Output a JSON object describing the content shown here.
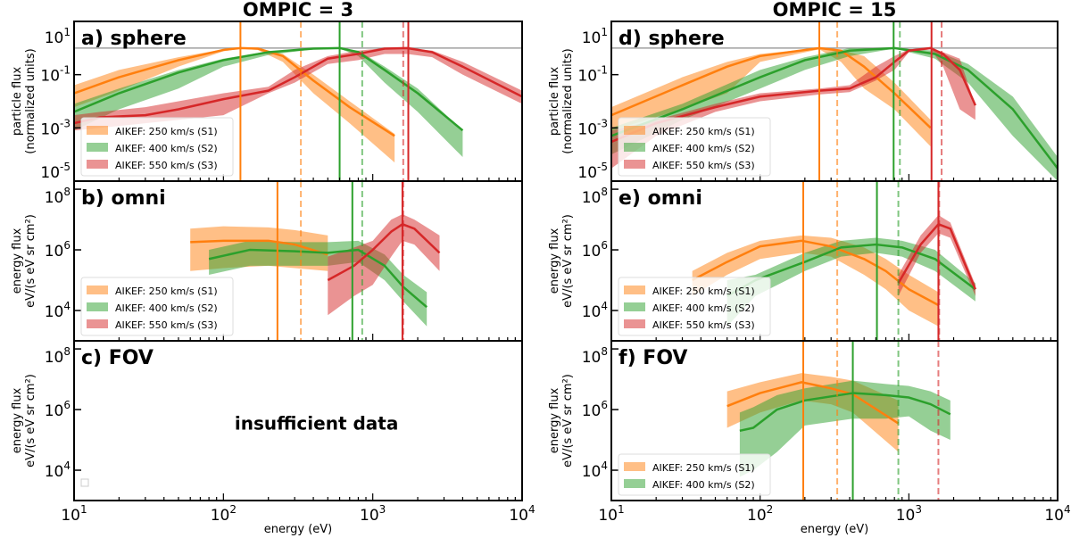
{
  "colors": {
    "S1": "#ff7f0e",
    "S2": "#2ca02c",
    "S3": "#d62728",
    "reference": "#a0a0a0"
  },
  "chart_data": [
    {
      "type": "line",
      "column_title": "OMPIC = 3",
      "panel_label": "a) sphere",
      "ylabel": [
        "particle flux",
        "(normalized units)"
      ],
      "xlabel": "",
      "xscale": "log",
      "yscale": "log",
      "xlim": [
        10,
        10000
      ],
      "ylim": [
        1e-05,
        10
      ],
      "yticks": [
        -5,
        -3,
        -1,
        1
      ],
      "xticks": [],
      "reference_line_y": 1,
      "legend": "lower-left",
      "series": [
        {
          "name": "AIKEF: 250 km/s (S1)",
          "key": "S1",
          "x": [
            10,
            20,
            50,
            100,
            130,
            170,
            250,
            400,
            700,
            1400
          ],
          "y": [
            0.02,
            0.08,
            0.35,
            0.85,
            1.0,
            0.95,
            0.5,
            0.06,
            0.006,
            0.0005
          ],
          "lo": [
            0.006,
            0.025,
            0.2,
            0.75,
            0.95,
            0.85,
            0.3,
            0.02,
            0.0015,
            5e-05
          ],
          "hi": [
            0.04,
            0.15,
            0.45,
            0.9,
            1.0,
            1.0,
            0.6,
            0.1,
            0.01,
            0.0006
          ]
        },
        {
          "name": "AIKEF: 400 km/s (S2)",
          "key": "S2",
          "x": [
            10,
            20,
            50,
            100,
            200,
            400,
            600,
            800,
            1200,
            2000,
            4000
          ],
          "y": [
            0.004,
            0.02,
            0.12,
            0.35,
            0.7,
            0.95,
            1.0,
            0.7,
            0.15,
            0.02,
            0.0008
          ],
          "lo": [
            0.0008,
            0.005,
            0.03,
            0.2,
            0.55,
            0.9,
            0.95,
            0.5,
            0.05,
            0.004,
            8e-05
          ],
          "hi": [
            0.008,
            0.03,
            0.15,
            0.4,
            0.75,
            1.0,
            1.0,
            0.8,
            0.2,
            0.03,
            0.0008
          ]
        },
        {
          "name": "AIKEF: 550 km/s (S3)",
          "key": "S3",
          "x": [
            10,
            15,
            30,
            50,
            100,
            200,
            300,
            500,
            800,
            1200,
            1700,
            2500,
            4000,
            10000
          ],
          "y": [
            0.0015,
            0.0025,
            0.003,
            0.005,
            0.012,
            0.025,
            0.08,
            0.4,
            0.6,
            0.95,
            1.0,
            0.7,
            0.2,
            0.015
          ],
          "lo": [
            0.0008,
            0.001,
            0.0015,
            0.002,
            0.003,
            0.02,
            0.05,
            0.25,
            0.35,
            0.6,
            0.6,
            0.45,
            0.1,
            0.008
          ],
          "hi": [
            0.003,
            0.004,
            0.006,
            0.01,
            0.02,
            0.035,
            0.15,
            0.5,
            0.8,
            1.0,
            1.0,
            0.8,
            0.3,
            0.025
          ]
        }
      ],
      "vlines": [
        {
          "key": "S1",
          "x": 130,
          "style": "solid"
        },
        {
          "key": "S1",
          "x": 330,
          "style": "dashed"
        },
        {
          "key": "S2",
          "x": 600,
          "style": "solid"
        },
        {
          "key": "S2",
          "x": 850,
          "style": "dashed"
        },
        {
          "key": "S3",
          "x": 1600,
          "style": "dashed"
        },
        {
          "key": "S3",
          "x": 1730,
          "style": "solid"
        }
      ]
    },
    {
      "type": "line",
      "panel_label": "b) omni",
      "ylabel": [
        "energy flux",
        "eV/(s eV sr cm²)"
      ],
      "xscale": "log",
      "yscale": "log",
      "xlim": [
        10,
        10000
      ],
      "ylim": [
        1000,
        185000000.0
      ],
      "yticks": [
        4,
        6,
        8
      ],
      "xticks": [],
      "legend": "lower-left",
      "series": [
        {
          "name": "AIKEF: 250 km/s (S1)",
          "key": "S1",
          "x": [
            60,
            100,
            200,
            300,
            500
          ],
          "y": [
            1800000.0,
            2000000.0,
            2000000.0,
            1500000.0,
            700000.0
          ],
          "lo": [
            200000.0,
            250000.0,
            300000.0,
            250000.0,
            200000.0
          ],
          "hi": [
            5000000.0,
            6000000.0,
            5500000.0,
            4500000.0,
            3000000.0
          ]
        },
        {
          "name": "AIKEF: 400 km/s (S2)",
          "key": "S2",
          "x": [
            80,
            150,
            300,
            500,
            800,
            1200,
            1600,
            2300
          ],
          "y": [
            500000.0,
            1000000.0,
            900000.0,
            800000.0,
            1000000.0,
            300000.0,
            60000.0,
            13000.0
          ],
          "lo": [
            150000.0,
            300000.0,
            300000.0,
            300000.0,
            400000.0,
            100000.0,
            20000.0,
            3000.0
          ],
          "hi": [
            1000000.0,
            2000000.0,
            1800000.0,
            1800000.0,
            2000000.0,
            700000.0,
            150000.0,
            40000.0
          ]
        },
        {
          "name": "AIKEF: 550 km/s (S3)",
          "key": "S3",
          "x": [
            500,
            750,
            1000,
            1330,
            1580,
            1900,
            2800
          ],
          "y": [
            100000.0,
            300000.0,
            1000000.0,
            4000000.0,
            7000000.0,
            5000000.0,
            800000.0
          ],
          "lo": [
            7000.0,
            30000.0,
            70000.0,
            600000.0,
            2000000.0,
            1500000.0,
            200000.0
          ],
          "hi": [
            600000.0,
            1200000.0,
            2000000.0,
            10000000.0,
            15000000.0,
            10000000.0,
            3000000.0
          ]
        }
      ],
      "vlines": [
        {
          "key": "S1",
          "x": 230,
          "style": "solid"
        },
        {
          "key": "S1",
          "x": 330,
          "style": "dashed"
        },
        {
          "key": "S2",
          "x": 730,
          "style": "solid"
        },
        {
          "key": "S2",
          "x": 850,
          "style": "dashed"
        },
        {
          "key": "S3",
          "x": 1580,
          "style": "solid"
        },
        {
          "key": "S3",
          "x": 1600,
          "style": "dashed"
        }
      ]
    },
    {
      "type": "line",
      "panel_label": "c) FOV",
      "ylabel": [
        "energy flux",
        "eV/(s eV sr cm²)"
      ],
      "xlabel": "energy (eV)",
      "xscale": "log",
      "yscale": "log",
      "xlim": [
        10,
        10000
      ],
      "ylim": [
        1000,
        185000000.0
      ],
      "yticks": [
        4,
        6,
        8
      ],
      "xticks": [
        1,
        2,
        3,
        4
      ],
      "annotation": "insufficient data",
      "series": [],
      "vlines": [],
      "empty_legend_marker": true
    },
    {
      "type": "line",
      "column_title": "OMPIC = 15",
      "panel_label": "d) sphere",
      "ylabel": [
        "particle flux",
        "(normalized units)"
      ],
      "xscale": "log",
      "yscale": "log",
      "xlim": [
        10,
        10000
      ],
      "ylim": [
        1e-05,
        10
      ],
      "yticks": [
        -5,
        -3,
        -1,
        1
      ],
      "xticks": [],
      "reference_line_y": 1,
      "legend": "lower-left",
      "series": [
        {
          "name": "AIKEF: 250 km/s (S1)",
          "key": "S1",
          "x": [
            10,
            30,
            60,
            100,
            250,
            350,
            500,
            800,
            1400
          ],
          "y": [
            0.003,
            0.04,
            0.2,
            0.5,
            1.0,
            0.8,
            0.2,
            0.02,
            0.001
          ],
          "lo": [
            0.0008,
            0.005,
            0.02,
            0.3,
            0.9,
            0.3,
            0.03,
            0.005,
            0.0002
          ],
          "hi": [
            0.006,
            0.08,
            0.3,
            0.6,
            1.0,
            0.85,
            0.5,
            0.05,
            0.002
          ]
        },
        {
          "name": "AIKEF: 400 km/s (S2)",
          "key": "S2",
          "x": [
            10,
            30,
            100,
            200,
            400,
            800,
            1500,
            2500,
            5000,
            10000
          ],
          "y": [
            0.0005,
            0.005,
            0.08,
            0.35,
            0.8,
            1.0,
            0.6,
            0.15,
            0.005,
            3e-05
          ],
          "lo": [
            0.0001,
            0.002,
            0.03,
            0.15,
            0.5,
            0.95,
            0.4,
            0.05,
            0.0005,
            1e-05
          ],
          "hi": [
            0.001,
            0.008,
            0.15,
            0.45,
            1.0,
            1.0,
            0.8,
            0.25,
            0.015,
            8e-05
          ]
        },
        {
          "name": "AIKEF: 550 km/s (S3)",
          "key": "S3",
          "x": [
            10,
            20,
            50,
            100,
            250,
            400,
            600,
            800,
            1000,
            1400,
            1700,
            2200,
            2800
          ],
          "y": [
            0.0003,
            0.0015,
            0.006,
            0.015,
            0.025,
            0.03,
            0.08,
            0.3,
            0.8,
            1.0,
            0.6,
            0.15,
            0.007
          ],
          "lo": [
            3e-05,
            0.0005,
            0.004,
            0.01,
            0.018,
            0.022,
            0.06,
            0.15,
            0.7,
            0.9,
            0.2,
            0.005,
            0.002
          ],
          "hi": [
            0.0008,
            0.002,
            0.008,
            0.02,
            0.03,
            0.04,
            0.2,
            0.5,
            0.9,
            1.0,
            0.7,
            0.4,
            0.007
          ]
        }
      ],
      "vlines": [
        {
          "key": "S1",
          "x": 250,
          "style": "solid"
        },
        {
          "key": "S1",
          "x": 330,
          "style": "dashed"
        },
        {
          "key": "S2",
          "x": 790,
          "style": "solid"
        },
        {
          "key": "S2",
          "x": 870,
          "style": "dashed"
        },
        {
          "key": "S3",
          "x": 1420,
          "style": "solid"
        },
        {
          "key": "S3",
          "x": 1660,
          "style": "dashed"
        }
      ]
    },
    {
      "type": "line",
      "panel_label": "e) omni",
      "ylabel": [
        "energy flux",
        "eV/(s eV sr cm²)"
      ],
      "xscale": "log",
      "yscale": "log",
      "xlim": [
        10,
        10000
      ],
      "ylim": [
        1000,
        185000000.0
      ],
      "yticks": [
        4,
        6,
        8
      ],
      "xticks": [],
      "legend": "lower-left",
      "series": [
        {
          "name": "AIKEF: 250 km/s (S1)",
          "key": "S1",
          "x": [
            35,
            60,
            100,
            190,
            300,
            500,
            700,
            1000,
            1580
          ],
          "y": [
            100000.0,
            400000.0,
            1300000.0,
            2000000.0,
            1300000.0,
            500000.0,
            200000.0,
            50000.0,
            15000.0
          ],
          "lo": [
            30000.0,
            150000.0,
            500000.0,
            800000.0,
            600000.0,
            150000.0,
            50000.0,
            10000.0,
            3000.0
          ],
          "hi": [
            200000.0,
            800000.0,
            2000000.0,
            3000000.0,
            2500000.0,
            1200000.0,
            500000.0,
            150000.0,
            40000.0
          ]
        },
        {
          "name": "AIKEF: 400 km/s (S2)",
          "key": "S2",
          "x": [
            60,
            93,
            200,
            350,
            600,
            900,
            1500,
            2800
          ],
          "y": [
            30000.0,
            100000.0,
            400000.0,
            1200000.0,
            1500000.0,
            1200000.0,
            500000.0,
            50000.0
          ],
          "lo": [
            3000.0,
            30000.0,
            200000.0,
            600000.0,
            800000.0,
            600000.0,
            200000.0,
            20000.0
          ],
          "hi": [
            100000.0,
            150000.0,
            800000.0,
            2000000.0,
            2500000.0,
            2000000.0,
            1000000.0,
            80000.0
          ]
        },
        {
          "name": "AIKEF: 550 km/s (S3)",
          "key": "S3",
          "x": [
            850,
            1200,
            1580,
            1900,
            2800
          ],
          "y": [
            80000.0,
            1500000.0,
            7000000.0,
            5000000.0,
            50000.0
          ],
          "lo": [
            30000.0,
            800000.0,
            3500000.0,
            2500000.0,
            30000.0
          ],
          "hi": [
            150000.0,
            3000000.0,
            14000000.0,
            8000000.0,
            70000.0
          ]
        }
      ],
      "vlines": [
        {
          "key": "S1",
          "x": 195,
          "style": "solid"
        },
        {
          "key": "S1",
          "x": 330,
          "style": "dashed"
        },
        {
          "key": "S2",
          "x": 610,
          "style": "solid"
        },
        {
          "key": "S2",
          "x": 850,
          "style": "dashed"
        },
        {
          "key": "S3",
          "x": 1580,
          "style": "solid"
        },
        {
          "key": "S3",
          "x": 1600,
          "style": "dashed"
        }
      ]
    },
    {
      "type": "line",
      "panel_label": "f) FOV",
      "ylabel": [
        "energy flux",
        "eV/(s eV sr cm²)"
      ],
      "xlabel": "energy (eV)",
      "xscale": "log",
      "yscale": "log",
      "xlim": [
        10,
        10000
      ],
      "ylim": [
        1000,
        185000000.0
      ],
      "yticks": [
        4,
        6,
        8
      ],
      "xticks": [
        1,
        2,
        3,
        4
      ],
      "legend": "lower-left",
      "series": [
        {
          "name": "AIKEF: 250 km/s (S1)",
          "key": "S1",
          "x": [
            60,
            100,
            190,
            300,
            420,
            850
          ],
          "y": [
            1300000.0,
            3500000.0,
            8000000.0,
            5000000.0,
            3200000.0,
            350000.0
          ],
          "lo": [
            250000.0,
            800000.0,
            2000000.0,
            1500000.0,
            800000.0,
            40000.0
          ],
          "hi": [
            4000000.0,
            8000000.0,
            16000000.0,
            12000000.0,
            9000000.0,
            2000000.0
          ]
        },
        {
          "name": "AIKEF: 400 km/s (S2)",
          "key": "S2",
          "x": [
            73,
            90,
            130,
            200,
            420,
            700,
            1000,
            1400,
            1900
          ],
          "y": [
            200000.0,
            250000.0,
            1000000.0,
            2000000.0,
            3500000.0,
            3000000.0,
            2500000.0,
            1500000.0,
            700000.0
          ],
          "lo": [
            6000.0,
            10000.0,
            40000.0,
            300000.0,
            500000.0,
            500000.0,
            600000.0,
            200000.0,
            100000.0
          ],
          "hi": [
            800000.0,
            1200000.0,
            3000000.0,
            5000000.0,
            9000000.0,
            7000000.0,
            6000000.0,
            4000000.0,
            2000000.0
          ]
        }
      ],
      "vlines": [
        {
          "key": "S1",
          "x": 195,
          "style": "solid"
        },
        {
          "key": "S1",
          "x": 330,
          "style": "dashed"
        },
        {
          "key": "S2",
          "x": 420,
          "style": "solid"
        },
        {
          "key": "S2",
          "x": 850,
          "style": "dashed"
        },
        {
          "key": "S3",
          "x": 1580,
          "style": "dashed"
        }
      ]
    }
  ]
}
